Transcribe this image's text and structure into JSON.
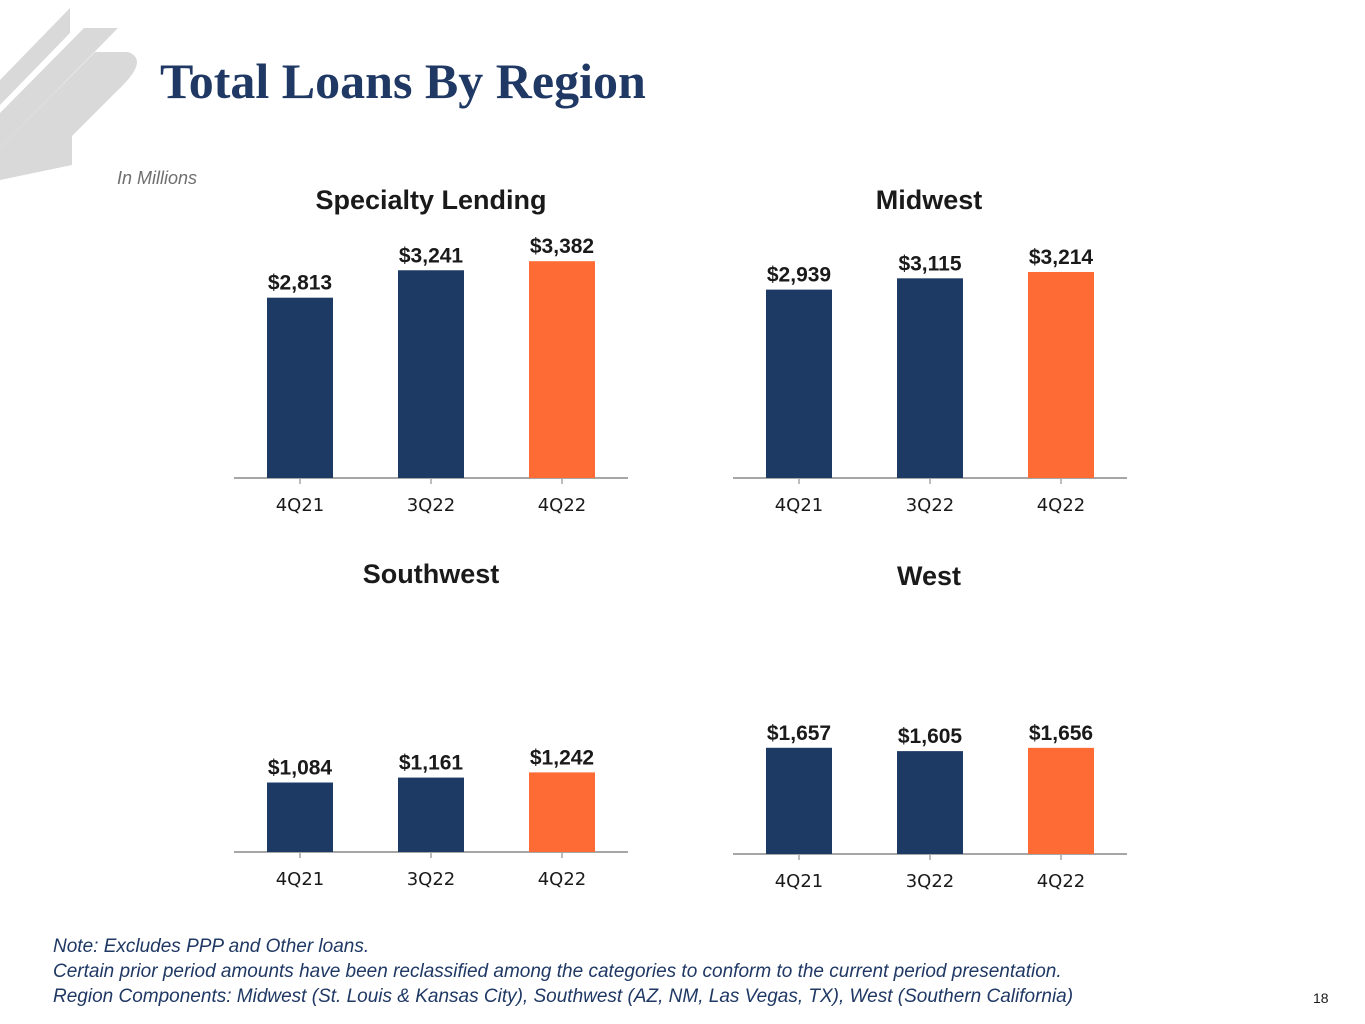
{
  "slide": {
    "title": "Total Loans By Region",
    "units": "In Millions",
    "notes": [
      "Note: Excludes PPP and Other loans.",
      "Certain prior period amounts have been reclassified among the categories to conform to the current period presentation.",
      "Region Components: Midwest (St. Louis & Kansas City), Southwest (AZ, NM, Las Vegas, TX), West (Southern California)"
    ],
    "page_number": "18"
  },
  "colors": {
    "title": "#1f3864",
    "bar_prior": "#1c3a63",
    "bar_current": "#ff6b35",
    "axis": "#a6a6a6",
    "logo": "#d9d9d9"
  },
  "chart_data": [
    {
      "type": "bar",
      "title": "Specialty Lending",
      "categories": [
        "4Q21",
        "3Q22",
        "4Q22"
      ],
      "values": [
        2813,
        3241,
        3382
      ],
      "labels": [
        "$2,813",
        "$3,241",
        "$3,382"
      ],
      "ylim": [
        0,
        3400
      ],
      "xlabel": "",
      "ylabel": ""
    },
    {
      "type": "bar",
      "title": "Midwest",
      "categories": [
        "4Q21",
        "3Q22",
        "4Q22"
      ],
      "values": [
        2939,
        3115,
        3214
      ],
      "labels": [
        "$2,939",
        "$3,115",
        "$3,214"
      ],
      "ylim": [
        0,
        3400
      ],
      "xlabel": "",
      "ylabel": ""
    },
    {
      "type": "bar",
      "title": "Southwest",
      "categories": [
        "4Q21",
        "3Q22",
        "4Q22"
      ],
      "values": [
        1084,
        1161,
        1242
      ],
      "labels": [
        "$1,084",
        "$1,161",
        "$1,242"
      ],
      "ylim": [
        0,
        3400
      ],
      "xlabel": "",
      "ylabel": ""
    },
    {
      "type": "bar",
      "title": "West",
      "categories": [
        "4Q21",
        "3Q22",
        "4Q22"
      ],
      "values": [
        1657,
        1605,
        1656
      ],
      "labels": [
        "$1,657",
        "$1,605",
        "$1,656"
      ],
      "ylim": [
        0,
        3400
      ],
      "xlabel": "",
      "ylabel": ""
    }
  ]
}
